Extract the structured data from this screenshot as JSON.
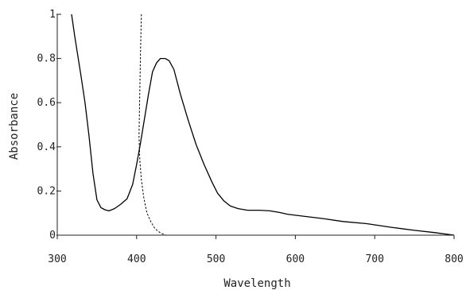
{
  "chart_data": {
    "type": "line",
    "title": "",
    "xlabel": "Wavelength",
    "ylabel": "Absorbance",
    "xlim": [
      300,
      800
    ],
    "ylim": [
      0,
      1
    ],
    "x_ticks": [
      300,
      400,
      500,
      600,
      700,
      800
    ],
    "y_ticks": [
      0,
      0.2,
      0.4,
      0.6,
      0.8,
      1
    ],
    "x_tick_labels": [
      "300",
      "400",
      "500",
      "600",
      "700",
      "800"
    ],
    "y_tick_labels": [
      "0",
      "0.2",
      "0.4",
      "0.6",
      "0.8",
      "1"
    ],
    "grid": false,
    "legend": "none",
    "series": [
      {
        "style": "solid",
        "color": "#000000",
        "points": [
          [
            318,
            1.0
          ],
          [
            322,
            0.9
          ],
          [
            330,
            0.72
          ],
          [
            335,
            0.6
          ],
          [
            340,
            0.45
          ],
          [
            345,
            0.28
          ],
          [
            350,
            0.16
          ],
          [
            355,
            0.125
          ],
          [
            360,
            0.115
          ],
          [
            365,
            0.11
          ],
          [
            372,
            0.12
          ],
          [
            380,
            0.14
          ],
          [
            388,
            0.165
          ],
          [
            395,
            0.23
          ],
          [
            400,
            0.32
          ],
          [
            405,
            0.42
          ],
          [
            410,
            0.53
          ],
          [
            415,
            0.64
          ],
          [
            420,
            0.74
          ],
          [
            425,
            0.78
          ],
          [
            430,
            0.8
          ],
          [
            436,
            0.8
          ],
          [
            441,
            0.79
          ],
          [
            447,
            0.75
          ],
          [
            455,
            0.64
          ],
          [
            465,
            0.52
          ],
          [
            475,
            0.41
          ],
          [
            485,
            0.32
          ],
          [
            495,
            0.24
          ],
          [
            502,
            0.19
          ],
          [
            510,
            0.155
          ],
          [
            518,
            0.132
          ],
          [
            528,
            0.12
          ],
          [
            540,
            0.113
          ],
          [
            555,
            0.113
          ],
          [
            568,
            0.11
          ],
          [
            580,
            0.103
          ],
          [
            590,
            0.095
          ],
          [
            610,
            0.086
          ],
          [
            635,
            0.075
          ],
          [
            660,
            0.062
          ],
          [
            690,
            0.052
          ],
          [
            720,
            0.036
          ],
          [
            750,
            0.022
          ],
          [
            775,
            0.012
          ],
          [
            800,
            0.0
          ]
        ]
      },
      {
        "style": "dashed",
        "color": "#000000",
        "points": [
          [
            406,
            1.0
          ],
          [
            405,
            0.85
          ],
          [
            404,
            0.65
          ],
          [
            403,
            0.45
          ],
          [
            404,
            0.34
          ],
          [
            406,
            0.25
          ],
          [
            409,
            0.17
          ],
          [
            413,
            0.1
          ],
          [
            418,
            0.06
          ],
          [
            423,
            0.03
          ],
          [
            430,
            0.01
          ],
          [
            437,
            0.0
          ],
          [
            445,
            0.0
          ]
        ]
      }
    ]
  }
}
